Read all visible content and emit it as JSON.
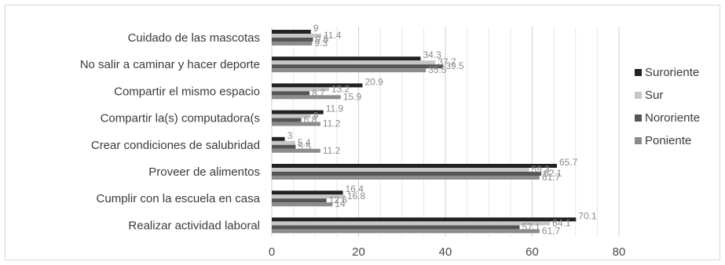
{
  "chart_data": {
    "type": "bar",
    "orientation": "horizontal",
    "categories": [
      "Cuidado de las mascotas",
      "No salir a caminar y hacer deporte",
      "Compartir el mismo espacio",
      "Compartir la(s) computadora(s",
      "Crear condiciones de salubridad",
      "Proveer de alimentos",
      "Cumplir con la escuela en casa",
      "Realizar actividad laboral"
    ],
    "series": [
      {
        "name": "Suroriente",
        "color": "#222222",
        "values": [
          9,
          34.3,
          20.9,
          11.9,
          3,
          65.7,
          16.4,
          70.1
        ]
      },
      {
        "name": "Sur",
        "color": "#c6c6c6",
        "values": [
          11.4,
          37.7,
          13.2,
          9,
          5.4,
          59.3,
          16.8,
          64.1
        ]
      },
      {
        "name": "Nororiente",
        "color": "#555555",
        "values": [
          9.5,
          39.5,
          8.7,
          6.8,
          5.5,
          62.1,
          12.6,
          57.1
        ]
      },
      {
        "name": "Poniente",
        "color": "#8c8c8c",
        "values": [
          9.3,
          35.5,
          15.9,
          11.2,
          11.2,
          61.7,
          14,
          61.7
        ]
      }
    ],
    "xlim": [
      0,
      80
    ],
    "ticks": [
      0,
      20,
      40,
      60,
      80
    ],
    "grid": true,
    "legend": "right"
  }
}
